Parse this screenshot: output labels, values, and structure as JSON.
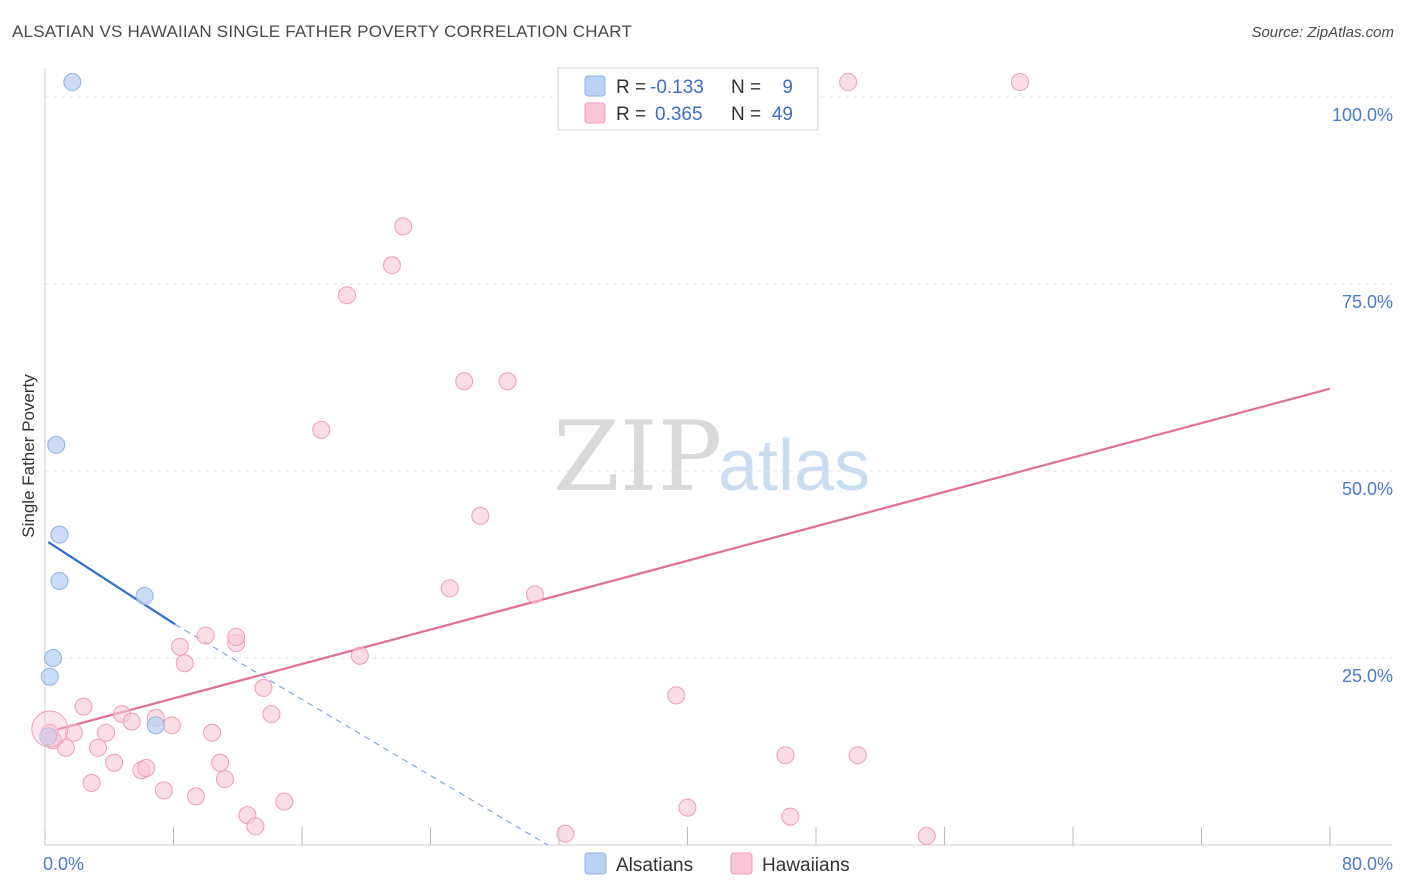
{
  "title": "ALSATIAN VS HAWAIIAN SINGLE FATHER POVERTY CORRELATION CHART",
  "source": "Source: ZipAtlas.com",
  "watermark": {
    "zip": "ZIP",
    "atlas": "atlas"
  },
  "colors": {
    "alsatians_fill": "#b9d1f3",
    "alsatians_stroke": "#8fb2e6",
    "alsatians_line": "#2f6fd0",
    "hawaiians_fill": "#f8c6d5",
    "hawaiians_stroke": "#ef9db6",
    "hawaiians_line": "#e0709a",
    "grid": "#e3e3e3",
    "tick_text": "#4a7bc8"
  },
  "legend_stats": {
    "r_label": "R =",
    "n_label": "N =",
    "alsatians": {
      "r": "-0.133",
      "n": "9"
    },
    "hawaiians": {
      "r": "0.365",
      "n": "49"
    }
  },
  "chart_data": {
    "type": "scatter",
    "xlabel": "",
    "ylabel": "Single Father Poverty",
    "xlim": [
      0,
      80
    ],
    "ylim": [
      0,
      100
    ],
    "x_tick_labels": [
      "0.0%",
      "80.0%"
    ],
    "y_tick_labels": [
      "25.0%",
      "50.0%",
      "75.0%",
      "100.0%"
    ],
    "y_ticks": [
      25,
      50,
      75,
      100
    ],
    "x_minor_ticks": [
      0,
      8,
      16,
      24,
      32,
      40,
      48,
      56,
      64,
      72,
      80
    ],
    "legend_position": "bottom-center",
    "series": [
      {
        "name": "Alsatians",
        "points": [
          [
            1.7,
            102
          ],
          [
            0.7,
            53.5
          ],
          [
            0.9,
            41.5
          ],
          [
            0.9,
            35.3
          ],
          [
            6.2,
            33.3
          ],
          [
            0.5,
            25
          ],
          [
            0.3,
            22.5
          ],
          [
            6.9,
            16
          ],
          [
            0.2,
            14.5
          ]
        ],
        "trend": {
          "x": [
            0.2,
            8.1
          ],
          "y": [
            40.5,
            29.5
          ],
          "extended_to": [
            31.3,
            0
          ]
        }
      },
      {
        "name": "Hawaiians",
        "points": [
          [
            0.3,
            15
          ],
          [
            0.5,
            14
          ],
          [
            1.3,
            13
          ],
          [
            1.8,
            15
          ],
          [
            2.4,
            18.5
          ],
          [
            2.9,
            8.3
          ],
          [
            3.3,
            13
          ],
          [
            3.8,
            15
          ],
          [
            4.3,
            11
          ],
          [
            4.8,
            17.5
          ],
          [
            5.4,
            16.5
          ],
          [
            6.0,
            10
          ],
          [
            6.3,
            10.3
          ],
          [
            6.9,
            17
          ],
          [
            7.4,
            7.3
          ],
          [
            7.9,
            16
          ],
          [
            8.4,
            26.5
          ],
          [
            8.7,
            24.3
          ],
          [
            9.4,
            6.5
          ],
          [
            10.0,
            28
          ],
          [
            10.4,
            15
          ],
          [
            10.9,
            11
          ],
          [
            11.2,
            8.8
          ],
          [
            11.9,
            27
          ],
          [
            11.9,
            27.8
          ],
          [
            12.6,
            4
          ],
          [
            13.1,
            2.5
          ],
          [
            13.6,
            21
          ],
          [
            14.1,
            17.5
          ],
          [
            14.9,
            5.8
          ],
          [
            17.2,
            55.5
          ],
          [
            18.8,
            73.5
          ],
          [
            19.6,
            25.3
          ],
          [
            21.6,
            77.5
          ],
          [
            22.3,
            82.7
          ],
          [
            25.2,
            34.3
          ],
          [
            26.1,
            62
          ],
          [
            27.1,
            44
          ],
          [
            28.8,
            62
          ],
          [
            30.5,
            33.5
          ],
          [
            32.4,
            1.5
          ],
          [
            39.3,
            20
          ],
          [
            40.0,
            5
          ],
          [
            46.1,
            12
          ],
          [
            46.4,
            3.8
          ],
          [
            50.6,
            12
          ],
          [
            50.0,
            102
          ],
          [
            54.9,
            1.2
          ],
          [
            60.7,
            102
          ]
        ],
        "trend": {
          "x": [
            0,
            80
          ],
          "y": [
            15,
            61
          ]
        }
      }
    ]
  }
}
